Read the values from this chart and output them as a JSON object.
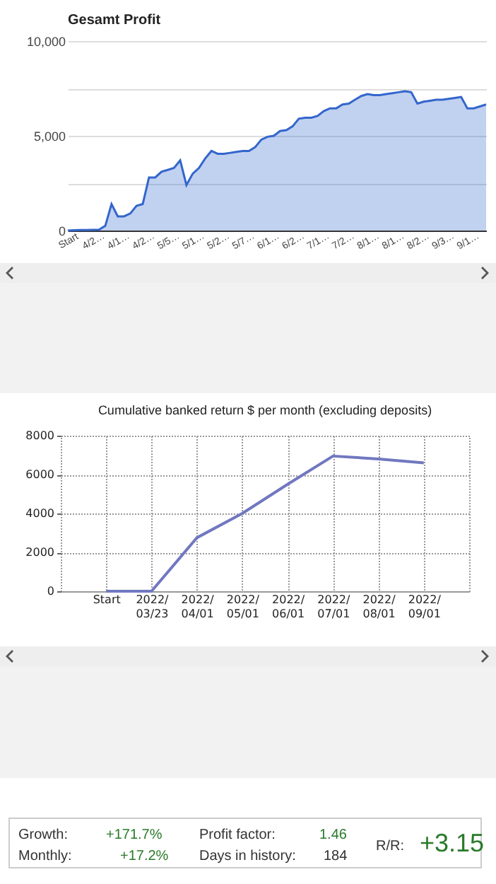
{
  "chart_data": [
    {
      "type": "area",
      "title": "Gesamt Profit",
      "categories": [
        "Start",
        null,
        null,
        null,
        "4/2…",
        null,
        null,
        null,
        "4/1…",
        null,
        null,
        null,
        "4/2…",
        null,
        null,
        null,
        "5/5…",
        null,
        null,
        null,
        "5/1…",
        null,
        null,
        null,
        "5/2…",
        null,
        null,
        null,
        "5/7…",
        null,
        null,
        null,
        "6/1…",
        null,
        null,
        null,
        "6/2…",
        null,
        null,
        null,
        "7/1…",
        null,
        null,
        null,
        "7/2…",
        null,
        null,
        null,
        "8/1…",
        null,
        null,
        null,
        "8/1…",
        null,
        null,
        null,
        "8/2…",
        null,
        null,
        null,
        "9/3…",
        null,
        null,
        null,
        "9/1…",
        null,
        null,
        null
      ],
      "series": [
        {
          "color": "#3366cc",
          "values": [
            0,
            20,
            30,
            30,
            40,
            50,
            250,
            1400,
            750,
            750,
            900,
            1300,
            1400,
            2800,
            2800,
            3100,
            3200,
            3300,
            3700,
            2400,
            3000,
            3300,
            3800,
            4200,
            4050,
            4050,
            4100,
            4150,
            4200,
            4200,
            4400,
            4800,
            4950,
            5000,
            5250,
            5300,
            5500,
            5900,
            5950,
            5950,
            6050,
            6300,
            6450,
            6450,
            6650,
            6700,
            6900,
            7100,
            7200,
            7150,
            7150,
            7200,
            7250,
            7300,
            7350,
            7300,
            6700,
            6800,
            6850,
            6900,
            6900,
            6950,
            7000,
            7050,
            6450,
            6450,
            6550,
            6650
          ]
        }
      ],
      "ylim": [
        0,
        10000
      ],
      "yticks": [
        0,
        {
          "value": 2500,
          "label": null
        },
        {
          "value": 5000,
          "label": "5,000"
        },
        {
          "value": 7500,
          "label": null
        },
        {
          "value": 10000,
          "label": "10,000"
        }
      ],
      "grid": "y"
    },
    {
      "type": "line",
      "title": "Cumulative banked return $ per month (excluding deposits)",
      "categories": [
        "Start",
        "2022/03/23",
        "2022/04/01",
        "2022/05/01",
        "2022/06/01",
        "2022/07/01",
        "2022/08/01",
        "2022/09/01"
      ],
      "series": [
        {
          "color": "#7178c0",
          "values": [
            0,
            0,
            2750,
            4000,
            5500,
            6950,
            6800,
            6600
          ]
        }
      ],
      "ylim": [
        0,
        8000
      ],
      "yticks": [
        0,
        2000,
        4000,
        6000,
        8000
      ],
      "grid": true,
      "line_style": "solid"
    },
    {
      "type": "other",
      "annotations": [
        "Growth:",
        "+171.7%",
        "Monthly:",
        "+17.2%",
        "Profit factor:",
        "1.46",
        "Days in history:",
        "184",
        "R/R:",
        "+3.15"
      ]
    }
  ]
}
